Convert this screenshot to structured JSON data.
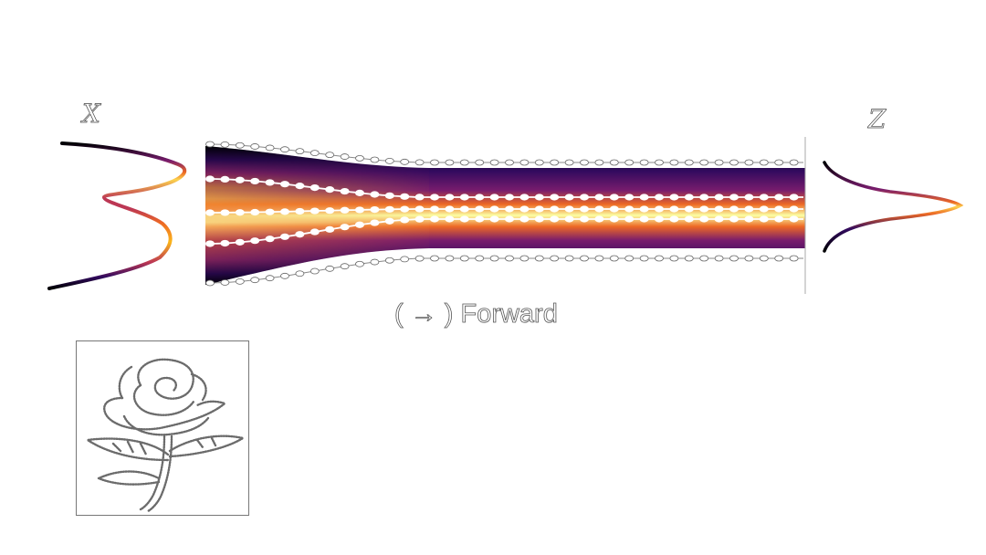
{
  "labels": {
    "source": "X",
    "target": "Z",
    "caption": "( → ) Forward"
  },
  "colors": {
    "colormap": [
      "#000004",
      "#320a5e",
      "#781c6d",
      "#bc3754",
      "#ed6925",
      "#fbb61a",
      "#fcffa4"
    ],
    "trajectory": "#ffffff",
    "outline": "#555555"
  },
  "inset": {
    "depicts": "rose-sketch",
    "style": "grey-pencil"
  },
  "diagram": {
    "type": "normalizing-flow",
    "direction": "forward",
    "source_distribution": "bimodal",
    "target_distribution": "unimodal",
    "trajectory_count": 6
  }
}
